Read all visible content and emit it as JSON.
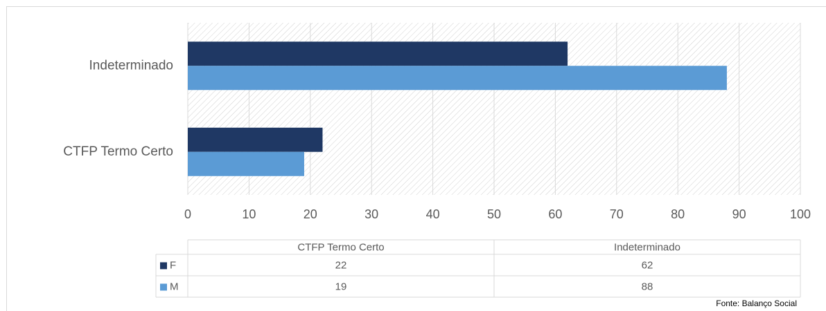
{
  "chart_data": {
    "type": "bar",
    "orientation": "horizontal",
    "categories": [
      "CTFP Termo Certo",
      "Indeterminado"
    ],
    "series": [
      {
        "name": "F",
        "color": "#1f3864",
        "values": [
          22,
          62
        ]
      },
      {
        "name": "M",
        "color": "#5b9bd5",
        "values": [
          19,
          88
        ]
      }
    ],
    "xlim": [
      0,
      100
    ],
    "xticks": [
      0,
      10,
      20,
      30,
      40,
      50,
      60,
      70,
      80,
      90,
      100
    ],
    "grid": true,
    "data_table": true,
    "source": "Fonte: Balanço Social"
  }
}
